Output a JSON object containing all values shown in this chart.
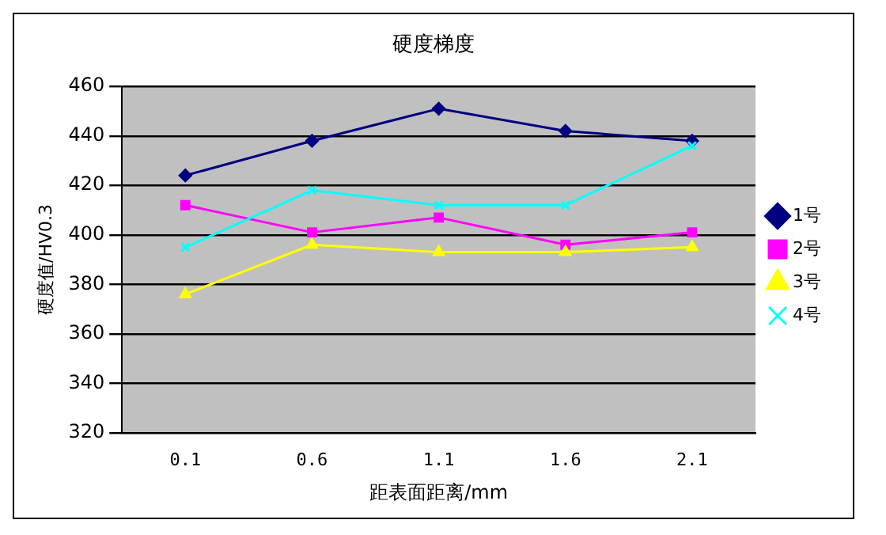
{
  "chart_data": {
    "type": "line",
    "title": "硬度梯度",
    "xlabel": "距表面距离/mm",
    "ylabel": "硬度值/HV0.3",
    "categories": [
      "0.1",
      "0.6",
      "1.1",
      "1.6",
      "2.1"
    ],
    "series": [
      {
        "name": "1号",
        "color": "#000080",
        "marker": "diamond",
        "values": [
          424,
          438,
          451,
          442,
          438
        ]
      },
      {
        "name": "2号",
        "color": "#ff00ff",
        "marker": "square",
        "values": [
          412,
          401,
          407,
          396,
          401
        ]
      },
      {
        "name": "3号",
        "color": "#ffff00",
        "marker": "triangle",
        "values": [
          376,
          396,
          393,
          393,
          395
        ]
      },
      {
        "name": "4号",
        "color": "#00ffff",
        "marker": "cross",
        "values": [
          395,
          418,
          412,
          412,
          436
        ]
      }
    ],
    "ylim": [
      320,
      460
    ],
    "yticks": [
      320,
      340,
      360,
      380,
      400,
      420,
      440,
      460
    ],
    "grid": "y",
    "legend": "right"
  }
}
